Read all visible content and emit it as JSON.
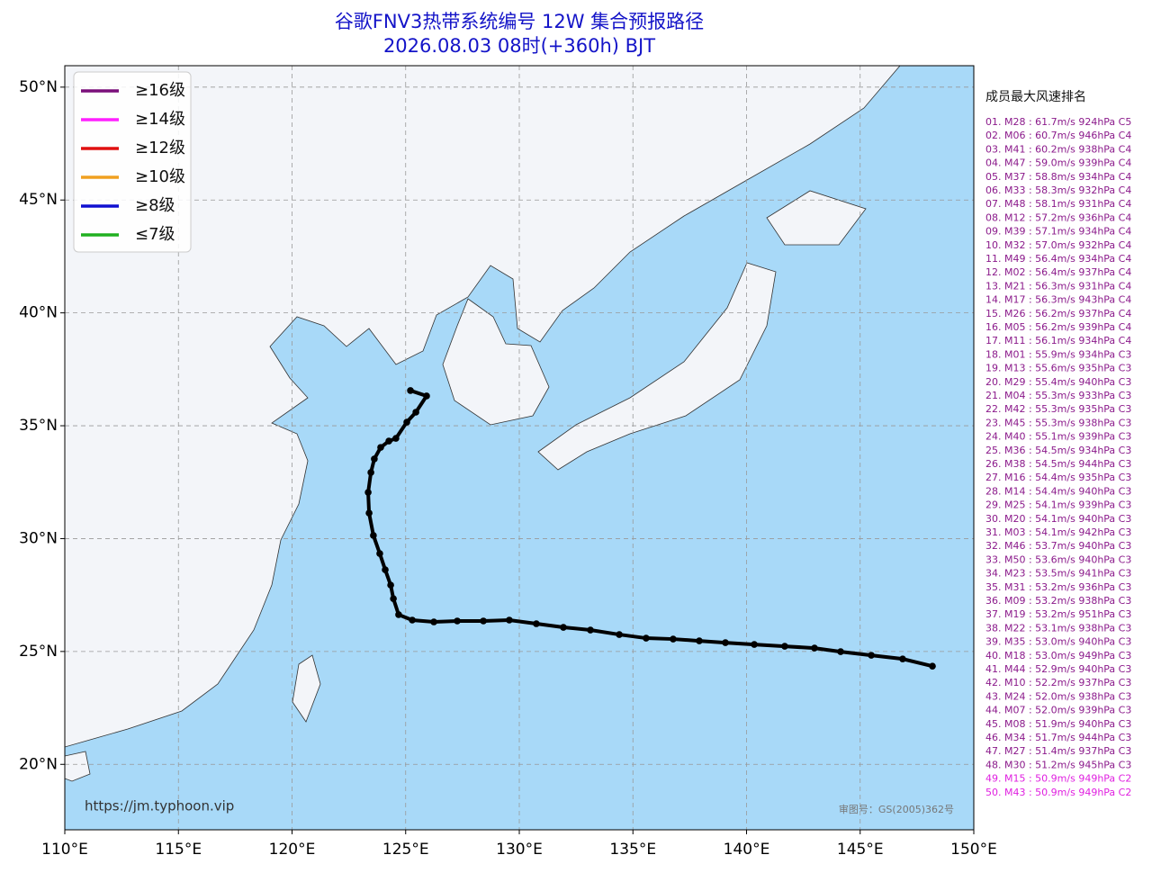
{
  "title": "谷歌FNV3热带系统编号 12W 集合预报路径",
  "subtitle": "2026.08.03 08时(+360h) BJT",
  "map": {
    "xlim": [
      110,
      150
    ],
    "ylim": [
      17.1,
      50.95
    ],
    "xticks": [
      {
        "value": 110,
        "label": "110°E"
      },
      {
        "value": 115,
        "label": "115°E"
      },
      {
        "value": 120,
        "label": "120°E"
      },
      {
        "value": 125,
        "label": "125°E"
      },
      {
        "value": 130,
        "label": "130°E"
      },
      {
        "value": 135,
        "label": "135°E"
      },
      {
        "value": 140,
        "label": "140°E"
      },
      {
        "value": 145,
        "label": "145°E"
      },
      {
        "value": 150,
        "label": "150°E"
      }
    ],
    "yticks": [
      {
        "value": 20,
        "label": "20°N"
      },
      {
        "value": 25,
        "label": "25°N"
      },
      {
        "value": 30,
        "label": "30°N"
      },
      {
        "value": 35,
        "label": "35°N"
      },
      {
        "value": 40,
        "label": "40°N"
      },
      {
        "value": 45,
        "label": "45°N"
      },
      {
        "value": 50,
        "label": "50°N"
      }
    ],
    "grid": true
  },
  "legend": [
    {
      "label": "≥16级",
      "color": "#7a0f7a"
    },
    {
      "label": "≥14级",
      "color": "#ff20ff"
    },
    {
      "label": "≥12级",
      "color": "#e01010"
    },
    {
      "label": "≥10级",
      "color": "#f0a020"
    },
    {
      "label": "≥8级",
      "color": "#1010d0"
    },
    {
      "label": "≤7级",
      "color": "#20b020"
    }
  ],
  "mean_track": {
    "color": "#000000",
    "lon": [
      148.18,
      146.87,
      145.49,
      144.14,
      142.99,
      141.68,
      140.34,
      139.07,
      137.92,
      136.77,
      135.58,
      134.4,
      133.13,
      131.94,
      130.75,
      129.56,
      128.42,
      127.27,
      126.24,
      125.29,
      124.69,
      124.46,
      124.34,
      124.1,
      123.86,
      123.58,
      123.39,
      123.35,
      123.47,
      123.62,
      123.9,
      124.26,
      124.57,
      125.05,
      125.45,
      125.92,
      125.21
    ],
    "lat": [
      24.35,
      24.67,
      24.83,
      24.99,
      25.15,
      25.23,
      25.31,
      25.39,
      25.47,
      25.55,
      25.59,
      25.75,
      25.95,
      26.07,
      26.23,
      26.39,
      26.35,
      26.35,
      26.31,
      26.39,
      26.63,
      27.34,
      27.94,
      28.62,
      29.34,
      30.14,
      31.13,
      32.05,
      32.93,
      33.53,
      34.04,
      34.32,
      34.44,
      35.16,
      35.6,
      36.32,
      36.56
    ]
  },
  "ranking": {
    "title": "成员最大风速排名",
    "items": [
      {
        "text": "01. M28 : 61.7m/s 924hPa C5",
        "color": "#8b1a8b"
      },
      {
        "text": "02. M06 : 60.7m/s 946hPa C4",
        "color": "#8b1a8b"
      },
      {
        "text": "03. M41 : 60.2m/s 938hPa C4",
        "color": "#8b1a8b"
      },
      {
        "text": "04. M47 : 59.0m/s 939hPa C4",
        "color": "#8b1a8b"
      },
      {
        "text": "05. M37 : 58.8m/s 934hPa C4",
        "color": "#8b1a8b"
      },
      {
        "text": "06. M33 : 58.3m/s 932hPa C4",
        "color": "#8b1a8b"
      },
      {
        "text": "07. M48 : 58.1m/s 931hPa C4",
        "color": "#8b1a8b"
      },
      {
        "text": "08. M12 : 57.2m/s 936hPa C4",
        "color": "#8b1a8b"
      },
      {
        "text": "09. M39 : 57.1m/s 934hPa C4",
        "color": "#8b1a8b"
      },
      {
        "text": "10. M32 : 57.0m/s 932hPa C4",
        "color": "#8b1a8b"
      },
      {
        "text": "11. M49 : 56.4m/s 934hPa C4",
        "color": "#8b1a8b"
      },
      {
        "text": "12. M02 : 56.4m/s 937hPa C4",
        "color": "#8b1a8b"
      },
      {
        "text": "13. M21 : 56.3m/s 931hPa C4",
        "color": "#8b1a8b"
      },
      {
        "text": "14. M17 : 56.3m/s 943hPa C4",
        "color": "#8b1a8b"
      },
      {
        "text": "15. M26 : 56.2m/s 937hPa C4",
        "color": "#8b1a8b"
      },
      {
        "text": "16. M05 : 56.2m/s 939hPa C4",
        "color": "#8b1a8b"
      },
      {
        "text": "17. M11 : 56.1m/s 934hPa C4",
        "color": "#8b1a8b"
      },
      {
        "text": "18. M01 : 55.9m/s 934hPa C3",
        "color": "#8b1a8b"
      },
      {
        "text": "19. M13 : 55.6m/s 935hPa C3",
        "color": "#8b1a8b"
      },
      {
        "text": "20. M29 : 55.4m/s 940hPa C3",
        "color": "#8b1a8b"
      },
      {
        "text": "21. M04 : 55.3m/s 933hPa C3",
        "color": "#8b1a8b"
      },
      {
        "text": "22. M42 : 55.3m/s 935hPa C3",
        "color": "#8b1a8b"
      },
      {
        "text": "23. M45 : 55.3m/s 938hPa C3",
        "color": "#8b1a8b"
      },
      {
        "text": "24. M40 : 55.1m/s 939hPa C3",
        "color": "#8b1a8b"
      },
      {
        "text": "25. M36 : 54.5m/s 934hPa C3",
        "color": "#8b1a8b"
      },
      {
        "text": "26. M38 : 54.5m/s 944hPa C3",
        "color": "#8b1a8b"
      },
      {
        "text": "27. M16 : 54.4m/s 935hPa C3",
        "color": "#8b1a8b"
      },
      {
        "text": "28. M14 : 54.4m/s 940hPa C3",
        "color": "#8b1a8b"
      },
      {
        "text": "29. M25 : 54.1m/s 939hPa C3",
        "color": "#8b1a8b"
      },
      {
        "text": "30. M20 : 54.1m/s 940hPa C3",
        "color": "#8b1a8b"
      },
      {
        "text": "31. M03 : 54.1m/s 942hPa C3",
        "color": "#8b1a8b"
      },
      {
        "text": "32. M46 : 53.7m/s 940hPa C3",
        "color": "#8b1a8b"
      },
      {
        "text": "33. M50 : 53.6m/s 940hPa C3",
        "color": "#8b1a8b"
      },
      {
        "text": "34. M23 : 53.5m/s 941hPa C3",
        "color": "#8b1a8b"
      },
      {
        "text": "35. M31 : 53.2m/s 936hPa C3",
        "color": "#8b1a8b"
      },
      {
        "text": "36. M09 : 53.2m/s 938hPa C3",
        "color": "#8b1a8b"
      },
      {
        "text": "37. M19 : 53.2m/s 951hPa C3",
        "color": "#8b1a8b"
      },
      {
        "text": "38. M22 : 53.1m/s 938hPa C3",
        "color": "#8b1a8b"
      },
      {
        "text": "39. M35 : 53.0m/s 940hPa C3",
        "color": "#8b1a8b"
      },
      {
        "text": "40. M18 : 53.0m/s 949hPa C3",
        "color": "#8b1a8b"
      },
      {
        "text": "41. M44 : 52.9m/s 940hPa C3",
        "color": "#8b1a8b"
      },
      {
        "text": "42. M10 : 52.2m/s 937hPa C3",
        "color": "#8b1a8b"
      },
      {
        "text": "43. M24 : 52.0m/s 938hPa C3",
        "color": "#8b1a8b"
      },
      {
        "text": "44. M07 : 52.0m/s 939hPa C3",
        "color": "#8b1a8b"
      },
      {
        "text": "45. M08 : 51.9m/s 940hPa C3",
        "color": "#8b1a8b"
      },
      {
        "text": "46. M34 : 51.7m/s 944hPa C3",
        "color": "#8b1a8b"
      },
      {
        "text": "47. M27 : 51.4m/s 937hPa C3",
        "color": "#8b1a8b"
      },
      {
        "text": "48. M30 : 51.2m/s 945hPa C3",
        "color": "#8b1a8b"
      },
      {
        "text": "49. M15 : 50.9m/s 949hPa C2",
        "color": "#e020e0"
      },
      {
        "text": "50. M43 : 50.9m/s 949hPa C2",
        "color": "#e020e0"
      }
    ]
  },
  "source": "https://jm.typhoon.vip",
  "approval": "审图号：GS(2005)362号"
}
